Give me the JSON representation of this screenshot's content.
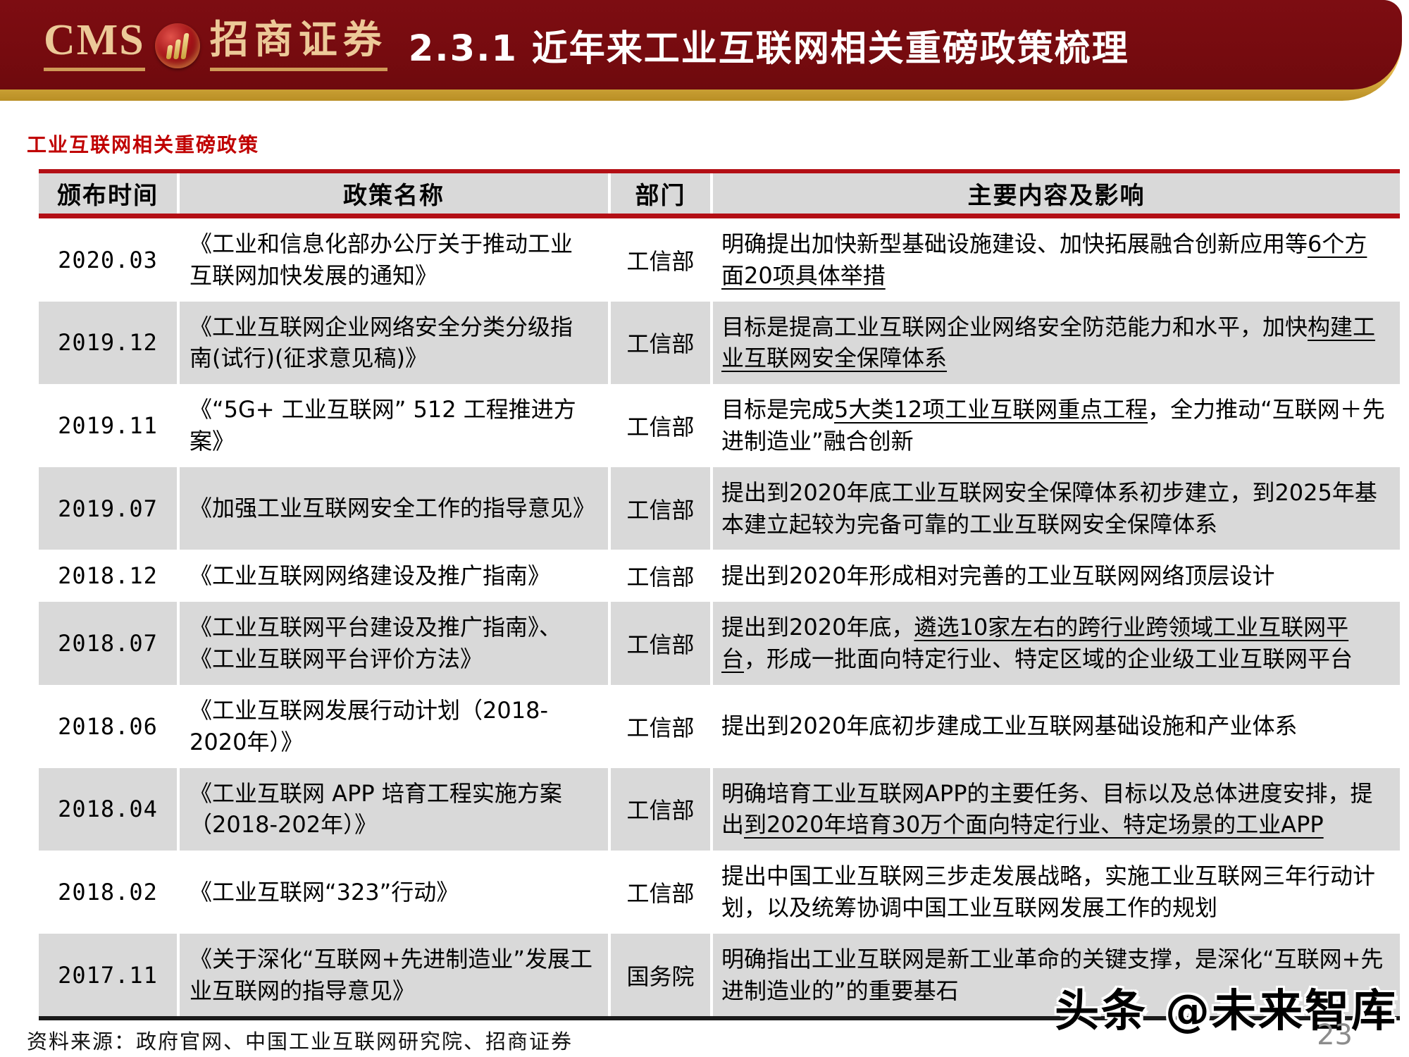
{
  "header": {
    "logo_cms": "CMS",
    "logo_brand": "招商证券",
    "title": "2.3.1 近年来工业互联网相关重磅政策梳理"
  },
  "section_title": "工业互联网相关重磅政策",
  "table": {
    "columns": [
      "颁布时间",
      "政策名称",
      "部门",
      "主要内容及影响"
    ],
    "rows": [
      {
        "date": "2020.03",
        "name": "《工业和信息化部办公厅关于推动工业互联网加快发展的通知》",
        "dept": "工信部",
        "content_pre": "明确提出加快新型基础设施建设、加快拓展融合创新应用等",
        "content_underline": "6个方面20项具体举措",
        "content_post": ""
      },
      {
        "date": "2019.12",
        "name": "《工业互联网企业网络安全分类分级指南(试行)(征求意见稿)》",
        "dept": "工信部",
        "content_pre": "目标是提高工业互联网企业网络安全防范能力和水平，加快",
        "content_underline": "构建工业互联网安全保障体系",
        "content_post": ""
      },
      {
        "date": "2019.11",
        "name": "《“5G+ 工业互联网” 512 工程推进方案》",
        "dept": "工信部",
        "content_pre": "目标是完成",
        "content_underline": "5大类12项工业互联网重点工程",
        "content_post": "，全力推动“互联网＋先进制造业”融合创新"
      },
      {
        "date": "2019.07",
        "name": "《加强工业互联网安全工作的指导意见》",
        "dept": "工信部",
        "content_pre": "提出到2020年底工业互联网安全保障体系初步建立，到2025年基本建立起较为完备可靠的工业互联网安全保障体系",
        "content_underline": "",
        "content_post": ""
      },
      {
        "date": "2018.12",
        "name": "《工业互联网网络建设及推广指南》",
        "dept": "工信部",
        "content_pre": "提出到2020年形成相对完善的工业互联网网络顶层设计",
        "content_underline": "",
        "content_post": ""
      },
      {
        "date": "2018.07",
        "name": "《工业互联网平台建设及推广指南》、《工业互联网平台评价方法》",
        "dept": "工信部",
        "content_pre": "提出到2020年底，",
        "content_underline": "遴选10家左右的跨行业跨领域工业互联网平台",
        "content_post": "，形成一批面向特定行业、特定区域的企业级工业互联网平台"
      },
      {
        "date": "2018.06",
        "name": "《工业互联网发展行动计划（2018-2020年）》",
        "dept": "工信部",
        "content_pre": "提出到2020年底初步建成工业互联网基础设施和产业体系",
        "content_underline": "",
        "content_post": ""
      },
      {
        "date": "2018.04",
        "name": "《工业互联网 APP 培育工程实施方案（2018-202年）》",
        "dept": "工信部",
        "content_pre": "明确培育工业互联网APP的主要任务、目标以及总体进度安排，提出",
        "content_underline": "到2020年培育30万个面向特定行业、特定场景的工业APP",
        "content_post": ""
      },
      {
        "date": "2018.02",
        "name": "《工业互联网“323”行动》",
        "dept": "工信部",
        "content_pre": "提出中国工业互联网三步走发展战略，实施工业互联网三年行动计划，以及统筹协调中国工业互联网发展工作的规划",
        "content_underline": "",
        "content_post": ""
      },
      {
        "date": "2017.11",
        "name": "《关于深化“互联网+先进制造业”发展工业互联网的指导意见》",
        "dept": "国务院",
        "content_pre": "明确指出工业互联网是新工业革命的关键支撑，是深化“互联网+先进制造业的”的重要基石",
        "content_underline": "",
        "content_post": ""
      }
    ]
  },
  "footer": {
    "source": "资料来源：政府官网、中国工业互联网研究院、招商证券",
    "watermark": "头条 @未来智库",
    "page_number": "23"
  },
  "colors": {
    "header_maroon": "#760b10",
    "band_gold": "#e9bc45",
    "logo_gold": "#ecc998",
    "line_red": "#b30f15",
    "subtitle_red": "#c00000",
    "row_gray": "#d9d9d9"
  }
}
